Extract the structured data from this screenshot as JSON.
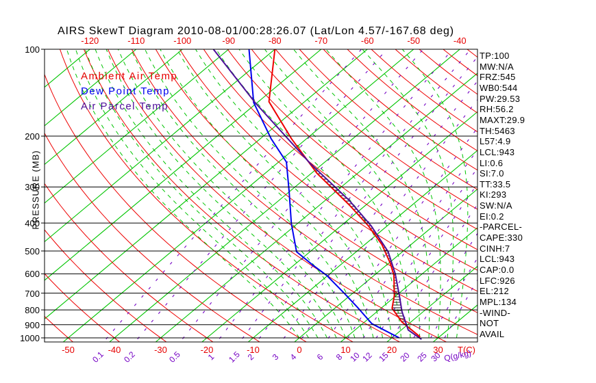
{
  "title": "AIRS SkewT Diagram 2010-08-01/00:28:26.07 (Lat/Lon 4.57/-167.68 deg)",
  "legend": [
    {
      "label": "Ambient Air Temp",
      "color": "#e60000"
    },
    {
      "label": "Dew Point Temp",
      "color": "#0000ee"
    },
    {
      "label": "Air Parcel Temp",
      "color": "#4d0e99"
    }
  ],
  "axes": {
    "y_label": "PRESSURE (MB)",
    "pressure_ticks": [
      100,
      200,
      300,
      400,
      500,
      600,
      700,
      800,
      900,
      1000
    ],
    "top_temp_ticks": [
      -120,
      -110,
      -100,
      -90,
      -80,
      -70,
      -60,
      -50,
      -40
    ],
    "bottom_temp_ticks": [
      -50,
      -40,
      -30,
      -20,
      -10,
      0,
      10,
      20,
      30
    ],
    "temp_axis_label": "T(C)",
    "mixing_ratio_ticks": [
      0.1,
      0.2,
      0.5,
      1,
      1.5,
      2,
      3,
      4,
      6,
      8,
      10,
      12,
      15,
      20,
      25,
      30
    ],
    "mixing_ratio_axis_label": "Q(g/kg)"
  },
  "stats_panel": {
    "lines": [
      "TP:100",
      "MW:N/A",
      "FRZ:545",
      "WB0:544",
      "PW:29.53",
      "RH:56.2",
      "MAXT:29.9",
      "TH:5463",
      "L57:4.9",
      "LCL:943",
      "LI:0.6",
      "SI:7.0",
      "TT:33.5",
      "KI:293",
      "SW:N/A",
      "EI:0.2",
      "-PARCEL-",
      "CAPE:330",
      "CINH:7",
      "LCL:943",
      "CAP:0.0",
      "LFC:926",
      "EL:212",
      "MPL:134",
      "-WIND-",
      "NOT",
      "AVAIL"
    ]
  },
  "chart_data": {
    "type": "line",
    "subtype": "skewt-log-p",
    "title": "AIRS SkewT Diagram 2010-08-01/00:28:26.07 (Lat/Lon 4.57/-167.68 deg)",
    "xlabel": "T(C)",
    "ylabel": "PRESSURE (MB)",
    "pressure_range_mb": [
      100,
      1000
    ],
    "grid": true,
    "legend_position": "top-left-inside",
    "series": [
      {
        "name": "Ambient Air Temp",
        "color": "#ee0000",
        "units": "p_mb,t_c",
        "points": [
          [
            100,
            -80
          ],
          [
            152,
            -67.7
          ],
          [
            204,
            -53.3
          ],
          [
            269,
            -38.8
          ],
          [
            347,
            -23.5
          ],
          [
            409,
            -14.1
          ],
          [
            475,
            -6.3
          ],
          [
            552,
            0.4
          ],
          [
            608,
            4.3
          ],
          [
            714,
            9.6
          ],
          [
            790,
            12.4
          ],
          [
            880,
            18.0
          ],
          [
            993,
            25.9
          ]
        ]
      },
      {
        "name": "Dew Point Temp",
        "color": "#0000ee",
        "units": "p_mb,t_c",
        "points": [
          [
            100,
            -85.6
          ],
          [
            153,
            -70.8
          ],
          [
            204,
            -57.7
          ],
          [
            246,
            -48.3
          ],
          [
            312,
            -40.0
          ],
          [
            402,
            -31.3
          ],
          [
            503,
            -22.9
          ],
          [
            559,
            -16.0
          ],
          [
            608,
            -10.2
          ],
          [
            700,
            -1.9
          ],
          [
            787,
            4.9
          ],
          [
            893,
            12.0
          ],
          [
            1000,
            21.6
          ]
        ]
      },
      {
        "name": "Air Parcel Temp",
        "color": "#4d0e99",
        "units": "p_mb,t_c",
        "points": [
          [
            100,
            -93.3
          ],
          [
            153,
            -70.5
          ],
          [
            250,
            -42.5
          ],
          [
            334,
            -24.8
          ],
          [
            409,
            -13.5
          ],
          [
            503,
            -3.1
          ],
          [
            599,
            4.1
          ],
          [
            716,
            10.8
          ],
          [
            809,
            15.3
          ],
          [
            939,
            21.5
          ],
          [
            1012,
            26.8
          ]
        ]
      }
    ],
    "cape_hatch_between_mb": [
      212,
      926
    ],
    "background": {
      "isotherms_c": {
        "min": -120,
        "max": 40,
        "step": 10,
        "color": "#00c400",
        "style": "solid"
      },
      "dry_adiabats_c": {
        "min": -60,
        "max": 190,
        "step": 10,
        "color": "#ee0000",
        "style": "solid"
      },
      "moist_adiabats_c": {
        "min": 0,
        "max": 34,
        "step": 2,
        "color": "#00c400",
        "style": "dashed"
      },
      "mixing_ratio_g_kg": [
        0.1,
        0.2,
        0.5,
        1,
        1.5,
        2,
        3,
        4,
        6,
        8,
        10,
        12,
        15,
        20,
        25,
        30
      ],
      "mixing_ratio_color": "#7400c4",
      "pressure_lines_mb": [
        100,
        200,
        300,
        400,
        500,
        600,
        700,
        800,
        900,
        1000
      ]
    }
  }
}
